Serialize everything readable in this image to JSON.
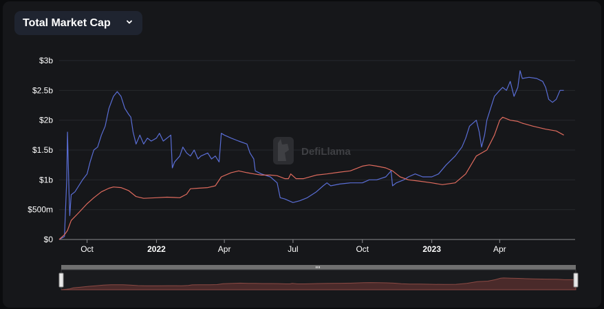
{
  "header": {
    "metric_label": "Total Market Cap"
  },
  "watermark": {
    "text": "DefiLlama"
  },
  "colors": {
    "series_a": "#5a6ed6",
    "series_b": "#e06b5e",
    "background": "#16171a",
    "grid": "#26282d"
  },
  "icons": {
    "dropdown": "chevron-down-icon",
    "watermark_logo": "llama-icon",
    "slider_handle": "grip-handle-icon"
  },
  "chart_data": {
    "type": "line",
    "title": "",
    "xlabel": "",
    "ylabel": "",
    "y_unit": "USD",
    "ylim": [
      0,
      3000000000
    ],
    "xlim": [
      "2021-08-25",
      "2023-07-10"
    ],
    "grid": true,
    "legend": "none",
    "y_ticks": [
      {
        "value": 0,
        "label": "$0"
      },
      {
        "value": 500000000,
        "label": "$500m"
      },
      {
        "value": 1000000000,
        "label": "$1b"
      },
      {
        "value": 1500000000,
        "label": "$1.5b"
      },
      {
        "value": 2000000000,
        "label": "$2b"
      },
      {
        "value": 2500000000,
        "label": "$2.5b"
      },
      {
        "value": 3000000000,
        "label": "$3b"
      }
    ],
    "x_ticks": [
      {
        "date": "2021-10-01",
        "label": "Oct",
        "bold": false
      },
      {
        "date": "2022-01-01",
        "label": "2022",
        "bold": true
      },
      {
        "date": "2022-04-01",
        "label": "Apr",
        "bold": false
      },
      {
        "date": "2022-07-01",
        "label": "Jul",
        "bold": false
      },
      {
        "date": "2022-10-01",
        "label": "Oct",
        "bold": false
      },
      {
        "date": "2023-01-01",
        "label": "2023",
        "bold": true
      },
      {
        "date": "2023-04-01",
        "label": "Apr",
        "bold": false
      }
    ],
    "series": [
      {
        "color": "#5a6ed6",
        "points": [
          [
            "2021-08-25",
            0
          ],
          [
            "2021-09-01",
            50000000
          ],
          [
            "2021-09-04",
            1000000000
          ],
          [
            "2021-09-05",
            1800000000
          ],
          [
            "2021-09-07",
            800000000
          ],
          [
            "2021-09-08",
            400000000
          ],
          [
            "2021-09-10",
            750000000
          ],
          [
            "2021-09-15",
            800000000
          ],
          [
            "2021-09-25",
            1000000000
          ],
          [
            "2021-10-01",
            1100000000
          ],
          [
            "2021-10-05",
            1300000000
          ],
          [
            "2021-10-10",
            1500000000
          ],
          [
            "2021-10-15",
            1550000000
          ],
          [
            "2021-10-20",
            1750000000
          ],
          [
            "2021-10-25",
            1900000000
          ],
          [
            "2021-10-30",
            2200000000
          ],
          [
            "2021-11-05",
            2400000000
          ],
          [
            "2021-11-10",
            2480000000
          ],
          [
            "2021-11-15",
            2400000000
          ],
          [
            "2021-11-20",
            2200000000
          ],
          [
            "2021-11-25",
            2100000000
          ],
          [
            "2021-11-28",
            2050000000
          ],
          [
            "2021-12-01",
            1800000000
          ],
          [
            "2021-12-05",
            1600000000
          ],
          [
            "2021-12-10",
            1750000000
          ],
          [
            "2021-12-15",
            1600000000
          ],
          [
            "2021-12-20",
            1700000000
          ],
          [
            "2021-12-25",
            1650000000
          ],
          [
            "2022-01-01",
            1700000000
          ],
          [
            "2022-01-05",
            1780000000
          ],
          [
            "2022-01-10",
            1650000000
          ],
          [
            "2022-01-15",
            1700000000
          ],
          [
            "2022-01-20",
            1750000000
          ],
          [
            "2022-01-22",
            1200000000
          ],
          [
            "2022-01-25",
            1300000000
          ],
          [
            "2022-02-01",
            1400000000
          ],
          [
            "2022-02-05",
            1550000000
          ],
          [
            "2022-02-10",
            1450000000
          ],
          [
            "2022-02-15",
            1400000000
          ],
          [
            "2022-02-20",
            1500000000
          ],
          [
            "2022-02-25",
            1350000000
          ],
          [
            "2022-03-01",
            1400000000
          ],
          [
            "2022-03-10",
            1450000000
          ],
          [
            "2022-03-15",
            1350000000
          ],
          [
            "2022-03-20",
            1400000000
          ],
          [
            "2022-03-25",
            1300000000
          ],
          [
            "2022-03-28",
            1780000000
          ],
          [
            "2022-04-01",
            1750000000
          ],
          [
            "2022-04-10",
            1700000000
          ],
          [
            "2022-04-20",
            1650000000
          ],
          [
            "2022-05-01",
            1600000000
          ],
          [
            "2022-05-05",
            1450000000
          ],
          [
            "2022-05-10",
            1350000000
          ],
          [
            "2022-05-12",
            1150000000
          ],
          [
            "2022-05-20",
            1100000000
          ],
          [
            "2022-06-01",
            1050000000
          ],
          [
            "2022-06-10",
            950000000
          ],
          [
            "2022-06-14",
            700000000
          ],
          [
            "2022-06-20",
            680000000
          ],
          [
            "2022-07-01",
            620000000
          ],
          [
            "2022-07-10",
            650000000
          ],
          [
            "2022-07-20",
            700000000
          ],
          [
            "2022-08-01",
            800000000
          ],
          [
            "2022-08-10",
            900000000
          ],
          [
            "2022-08-15",
            950000000
          ],
          [
            "2022-08-20",
            900000000
          ],
          [
            "2022-09-01",
            930000000
          ],
          [
            "2022-09-15",
            950000000
          ],
          [
            "2022-10-01",
            950000000
          ],
          [
            "2022-10-10",
            1000000000
          ],
          [
            "2022-10-20",
            1000000000
          ],
          [
            "2022-11-01",
            1050000000
          ],
          [
            "2022-11-08",
            1150000000
          ],
          [
            "2022-11-10",
            900000000
          ],
          [
            "2022-11-15",
            950000000
          ],
          [
            "2022-11-25",
            1000000000
          ],
          [
            "2022-12-01",
            1050000000
          ],
          [
            "2022-12-10",
            1100000000
          ],
          [
            "2022-12-20",
            1050000000
          ],
          [
            "2023-01-01",
            1050000000
          ],
          [
            "2023-01-10",
            1100000000
          ],
          [
            "2023-01-20",
            1250000000
          ],
          [
            "2023-02-01",
            1400000000
          ],
          [
            "2023-02-10",
            1550000000
          ],
          [
            "2023-02-15",
            1700000000
          ],
          [
            "2023-02-20",
            1900000000
          ],
          [
            "2023-03-01",
            2000000000
          ],
          [
            "2023-03-05",
            1800000000
          ],
          [
            "2023-03-08",
            1550000000
          ],
          [
            "2023-03-12",
            1750000000
          ],
          [
            "2023-03-15",
            2000000000
          ],
          [
            "2023-03-20",
            2200000000
          ],
          [
            "2023-03-25",
            2400000000
          ],
          [
            "2023-04-01",
            2500000000
          ],
          [
            "2023-04-05",
            2550000000
          ],
          [
            "2023-04-10",
            2500000000
          ],
          [
            "2023-04-15",
            2650000000
          ],
          [
            "2023-04-18",
            2500000000
          ],
          [
            "2023-04-20",
            2400000000
          ],
          [
            "2023-04-25",
            2550000000
          ],
          [
            "2023-04-28",
            2830000000
          ],
          [
            "2023-05-01",
            2700000000
          ],
          [
            "2023-05-10",
            2720000000
          ],
          [
            "2023-05-20",
            2700000000
          ],
          [
            "2023-05-28",
            2650000000
          ],
          [
            "2023-06-01",
            2550000000
          ],
          [
            "2023-06-05",
            2350000000
          ],
          [
            "2023-06-10",
            2300000000
          ],
          [
            "2023-06-15",
            2350000000
          ],
          [
            "2023-06-20",
            2500000000
          ],
          [
            "2023-06-25",
            2500000000
          ]
        ]
      },
      {
        "color": "#e06b5e",
        "points": [
          [
            "2021-08-25",
            0
          ],
          [
            "2021-09-01",
            80000000
          ],
          [
            "2021-09-05",
            150000000
          ],
          [
            "2021-09-10",
            320000000
          ],
          [
            "2021-09-20",
            450000000
          ],
          [
            "2021-10-01",
            600000000
          ],
          [
            "2021-10-10",
            700000000
          ],
          [
            "2021-10-20",
            800000000
          ],
          [
            "2021-10-30",
            860000000
          ],
          [
            "2021-11-05",
            880000000
          ],
          [
            "2021-11-15",
            870000000
          ],
          [
            "2021-11-25",
            820000000
          ],
          [
            "2021-12-05",
            720000000
          ],
          [
            "2021-12-15",
            690000000
          ],
          [
            "2022-01-01",
            700000000
          ],
          [
            "2022-01-15",
            710000000
          ],
          [
            "2022-02-01",
            700000000
          ],
          [
            "2022-02-10",
            760000000
          ],
          [
            "2022-02-15",
            850000000
          ],
          [
            "2022-02-25",
            860000000
          ],
          [
            "2022-03-10",
            870000000
          ],
          [
            "2022-03-20",
            900000000
          ],
          [
            "2022-03-28",
            1050000000
          ],
          [
            "2022-04-10",
            1120000000
          ],
          [
            "2022-04-20",
            1150000000
          ],
          [
            "2022-05-01",
            1120000000
          ],
          [
            "2022-05-10",
            1100000000
          ],
          [
            "2022-05-20",
            1080000000
          ],
          [
            "2022-06-01",
            1080000000
          ],
          [
            "2022-06-10",
            1070000000
          ],
          [
            "2022-06-20",
            1020000000
          ],
          [
            "2022-06-25",
            1020000000
          ],
          [
            "2022-06-28",
            1100000000
          ],
          [
            "2022-07-05",
            1020000000
          ],
          [
            "2022-07-15",
            1020000000
          ],
          [
            "2022-08-01",
            1080000000
          ],
          [
            "2022-08-15",
            1100000000
          ],
          [
            "2022-09-01",
            1130000000
          ],
          [
            "2022-09-15",
            1150000000
          ],
          [
            "2022-10-01",
            1230000000
          ],
          [
            "2022-10-10",
            1250000000
          ],
          [
            "2022-10-20",
            1230000000
          ],
          [
            "2022-11-01",
            1200000000
          ],
          [
            "2022-11-10",
            1150000000
          ],
          [
            "2022-11-20",
            1050000000
          ],
          [
            "2022-12-01",
            1000000000
          ],
          [
            "2022-12-15",
            980000000
          ],
          [
            "2023-01-01",
            950000000
          ],
          [
            "2023-01-15",
            920000000
          ],
          [
            "2023-02-01",
            950000000
          ],
          [
            "2023-02-15",
            1100000000
          ],
          [
            "2023-03-01",
            1400000000
          ],
          [
            "2023-03-15",
            1500000000
          ],
          [
            "2023-03-25",
            1750000000
          ],
          [
            "2023-04-01",
            2000000000
          ],
          [
            "2023-04-05",
            2050000000
          ],
          [
            "2023-04-15",
            2000000000
          ],
          [
            "2023-04-25",
            1980000000
          ],
          [
            "2023-05-01",
            1950000000
          ],
          [
            "2023-05-15",
            1900000000
          ],
          [
            "2023-06-01",
            1850000000
          ],
          [
            "2023-06-15",
            1820000000
          ],
          [
            "2023-06-25",
            1750000000
          ]
        ]
      }
    ]
  }
}
